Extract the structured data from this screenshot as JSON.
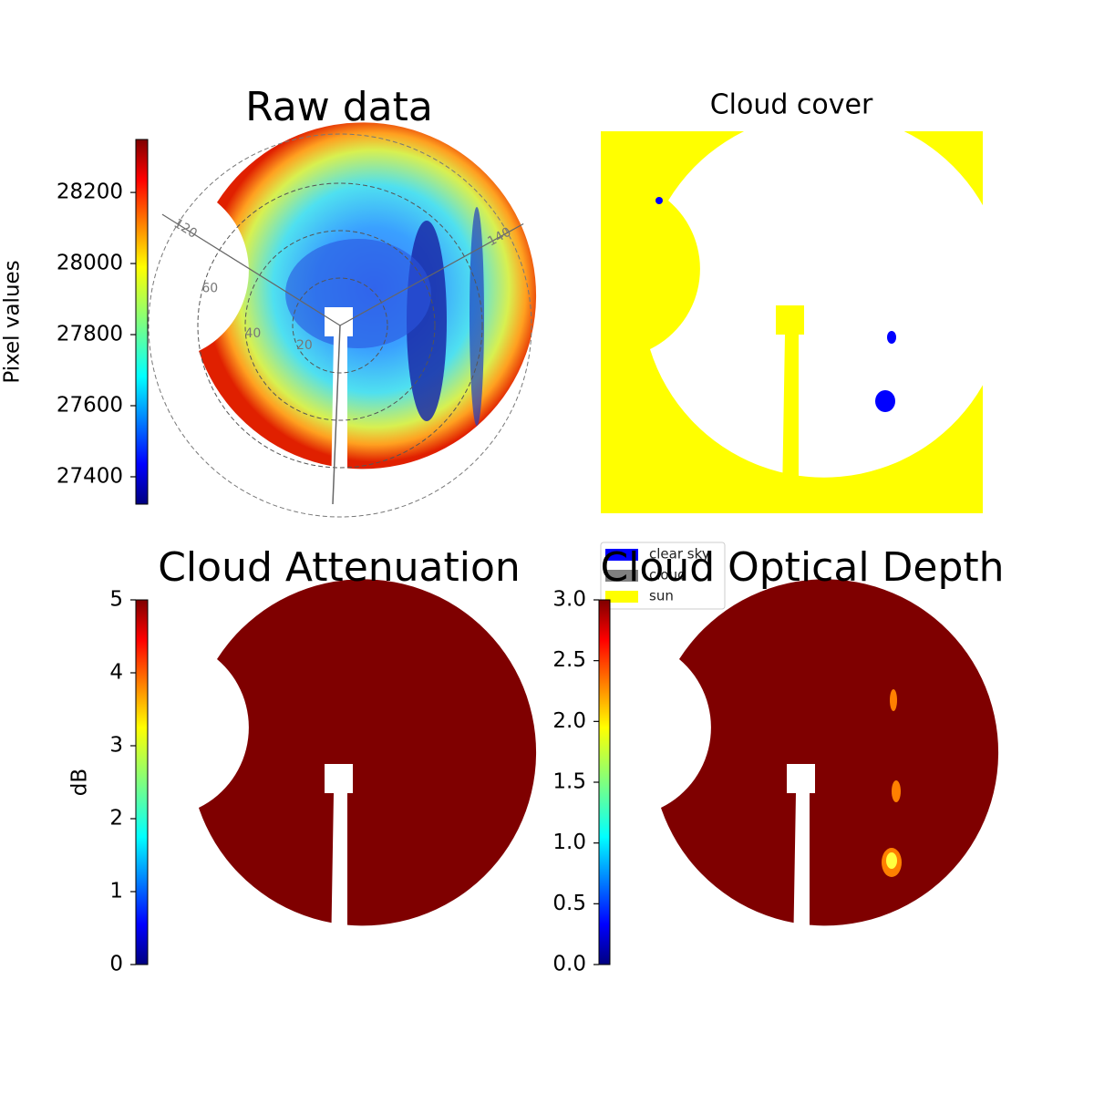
{
  "chart_data": [
    {
      "type": "image",
      "title": "Raw data",
      "colormap": "jet",
      "colorbar": {
        "label": "Pixel values",
        "ylim": [
          27323,
          28349
        ],
        "yticks": [
          27400,
          27600,
          27800,
          28000,
          28200
        ]
      },
      "radial_ticks": [
        20,
        40,
        60
      ],
      "azimuth_ticks": [
        120,
        140
      ]
    },
    {
      "type": "image",
      "title": "Cloud cover",
      "legend": {
        "labels": [
          "clear sky",
          "cloud",
          "sun"
        ],
        "colors": [
          "#0000ff",
          "#808080",
          "#ffff00"
        ]
      }
    },
    {
      "type": "image",
      "title": "Cloud Attenuation",
      "colormap": "jet",
      "colorbar": {
        "label": "dB",
        "ylim": [
          0,
          5
        ],
        "yticks": [
          0,
          1,
          2,
          3,
          4,
          5
        ]
      }
    },
    {
      "type": "image",
      "title": "Cloud Optical Depth",
      "colormap": "jet",
      "colorbar": {
        "ylim": [
          0,
          3
        ],
        "yticks": [
          {
            "value": 0,
            "label": "0.0"
          },
          {
            "value": 0.5,
            "label": "0.5"
          },
          {
            "value": 1,
            "label": "1.0"
          },
          {
            "value": 1.5,
            "label": "1.5"
          },
          {
            "value": 2,
            "label": "2.0"
          },
          {
            "value": 2.5,
            "label": "2.5"
          },
          {
            "value": 3,
            "label": "3.0"
          }
        ]
      }
    }
  ]
}
